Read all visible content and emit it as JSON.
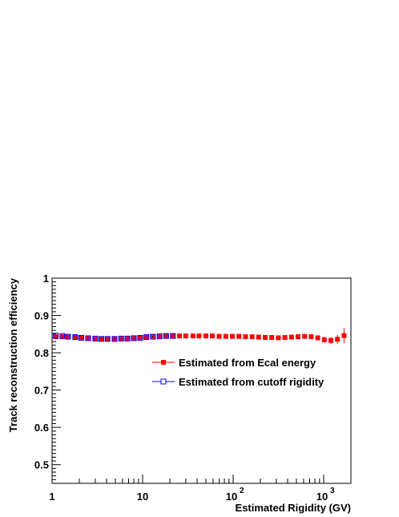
{
  "chart_data": {
    "type": "scatter",
    "title": "",
    "xlabel": "Estimated Rigidity (GV)",
    "ylabel": "Track reconstruction efficiency",
    "xscale": "log",
    "xlim": [
      1,
      2000
    ],
    "ylim": [
      0.45,
      1.0
    ],
    "x_tick_labels": [
      "1",
      "10",
      "10",
      "10"
    ],
    "x_tick_exponents": [
      "",
      "",
      "2",
      "3"
    ],
    "y_tick_labels": [
      "0.5",
      "0.6",
      "0.7",
      "0.8",
      "0.9",
      "1"
    ],
    "y_ticks": [
      0.5,
      0.6,
      0.7,
      0.8,
      0.9,
      1.0
    ],
    "grid": false,
    "legend_position": "right",
    "series": [
      {
        "name": "Estimated from Ecal energy",
        "color": "#ff0000",
        "marker": "filled-square",
        "x": [
          1.1,
          1.3,
          1.5,
          1.8,
          2.1,
          2.5,
          3.0,
          3.5,
          4.1,
          4.9,
          5.8,
          6.8,
          8.0,
          9.4,
          11,
          13,
          15.4,
          18.2,
          21.6,
          25.5,
          30,
          36,
          42,
          50,
          59,
          70,
          83,
          98,
          116,
          137,
          162,
          191,
          226,
          267,
          316,
          373,
          441,
          521,
          616,
          728,
          860,
          1017,
          1202,
          1420,
          1680
        ],
        "y": [
          0.843,
          0.843,
          0.842,
          0.841,
          0.84,
          0.839,
          0.838,
          0.837,
          0.837,
          0.838,
          0.838,
          0.839,
          0.84,
          0.841,
          0.842,
          0.843,
          0.844,
          0.845,
          0.845,
          0.845,
          0.845,
          0.845,
          0.845,
          0.845,
          0.845,
          0.844,
          0.844,
          0.844,
          0.844,
          0.843,
          0.843,
          0.842,
          0.841,
          0.841,
          0.84,
          0.841,
          0.842,
          0.843,
          0.844,
          0.843,
          0.84,
          0.835,
          0.833,
          0.836,
          0.846
        ],
        "yerr": [
          0.002,
          0.002,
          0.002,
          0.002,
          0.002,
          0.002,
          0.002,
          0.002,
          0.002,
          0.002,
          0.002,
          0.002,
          0.002,
          0.002,
          0.002,
          0.002,
          0.002,
          0.002,
          0.002,
          0.002,
          0.002,
          0.002,
          0.002,
          0.002,
          0.002,
          0.002,
          0.002,
          0.002,
          0.002,
          0.002,
          0.002,
          0.003,
          0.003,
          0.003,
          0.003,
          0.003,
          0.004,
          0.004,
          0.005,
          0.006,
          0.007,
          0.008,
          0.01,
          0.012,
          0.02
        ]
      },
      {
        "name": "Estimated from cutoff rigidity",
        "color": "#0000ff",
        "marker": "open-square",
        "x": [
          1.1,
          1.3,
          1.5,
          1.8,
          2.1,
          2.5,
          3.0,
          3.5,
          4.1,
          4.9,
          5.8,
          6.8,
          8.0,
          9.4,
          11,
          13,
          15.4,
          18.2,
          21.6
        ],
        "y": [
          0.846,
          0.845,
          0.843,
          0.842,
          0.84,
          0.839,
          0.838,
          0.837,
          0.837,
          0.837,
          0.838,
          0.838,
          0.839,
          0.84,
          0.842,
          0.843,
          0.844,
          0.845,
          0.845
        ],
        "yerr": [
          0.002,
          0.002,
          0.002,
          0.002,
          0.002,
          0.002,
          0.002,
          0.002,
          0.002,
          0.002,
          0.002,
          0.002,
          0.002,
          0.002,
          0.002,
          0.002,
          0.002,
          0.002,
          0.002
        ]
      }
    ]
  }
}
